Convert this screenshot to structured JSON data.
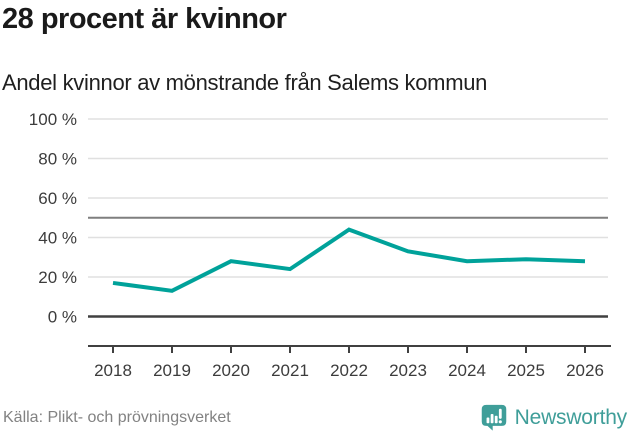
{
  "header": {
    "title": "28 procent är kvinnor",
    "subtitle": "Andel kvinnor av mönstrande från Salems kommun"
  },
  "chart_data": {
    "type": "line",
    "title": "28 procent är kvinnor",
    "subtitle": "Andel kvinnor av mönstrande från Salems kommun",
    "x": [
      2018,
      2019,
      2020,
      2021,
      2022,
      2023,
      2024,
      2025,
      2026
    ],
    "series": [
      {
        "name": "Andel kvinnor av mönstrande",
        "values": [
          17,
          13,
          28,
          24,
          44,
          33,
          28,
          29,
          28
        ]
      }
    ],
    "xlabel": "",
    "ylabel": "",
    "ylim": [
      0,
      100
    ],
    "y_ticks": [
      0,
      20,
      40,
      60,
      80,
      100
    ],
    "y_tick_suffix": " %",
    "reference_line": 50,
    "grid": true,
    "legend": "none",
    "colors": {
      "line": "#00a29a",
      "grid": "#e0e0e0",
      "reference": "#7f7f7f",
      "axis": "#404040",
      "label": "#3c3c3c"
    }
  },
  "footer": {
    "source": "Källa: Plikt- och prövningsverket",
    "brand": "Newsworthy",
    "brand_color": "#3f9e99"
  }
}
